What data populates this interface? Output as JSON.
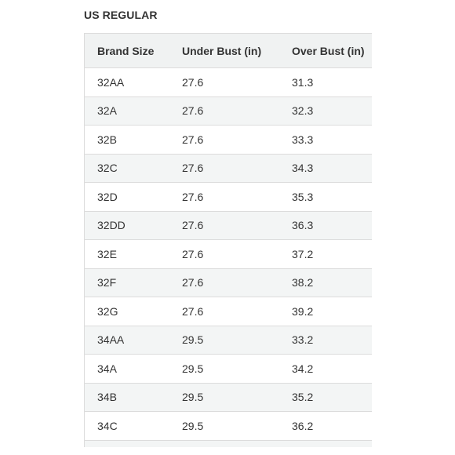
{
  "title": "US REGULAR",
  "table": {
    "headers": [
      "Brand Size",
      "Under Bust (in)",
      "Over Bust (in)"
    ],
    "rows": [
      [
        "32AA",
        "27.6",
        "31.3"
      ],
      [
        "32A",
        "27.6",
        "32.3"
      ],
      [
        "32B",
        "27.6",
        "33.3"
      ],
      [
        "32C",
        "27.6",
        "34.3"
      ],
      [
        "32D",
        "27.6",
        "35.3"
      ],
      [
        "32DD",
        "27.6",
        "36.3"
      ],
      [
        "32E",
        "27.6",
        "37.2"
      ],
      [
        "32F",
        "27.6",
        "38.2"
      ],
      [
        "32G",
        "27.6",
        "39.2"
      ],
      [
        "34AA",
        "29.5",
        "33.2"
      ],
      [
        "34A",
        "29.5",
        "34.2"
      ],
      [
        "34B",
        "29.5",
        "35.2"
      ],
      [
        "34C",
        "29.5",
        "36.2"
      ]
    ]
  }
}
